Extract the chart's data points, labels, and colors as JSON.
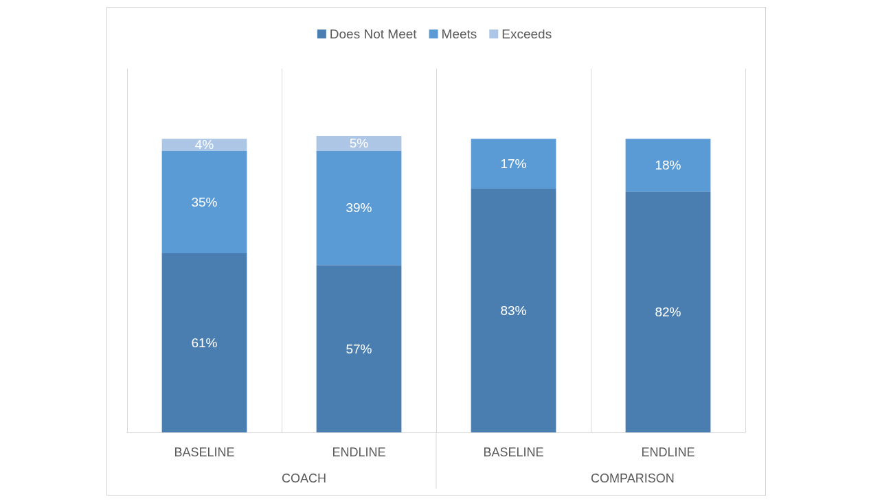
{
  "chart_data": {
    "type": "bar",
    "stacked": true,
    "categories": [
      "BASELINE",
      "ENDLINE",
      "BASELINE",
      "ENDLINE"
    ],
    "series": [
      {
        "name": "Does Not Meet",
        "color": "#4a7eb0",
        "values": [
          61,
          57,
          83,
          82
        ],
        "value_labels": [
          "61%",
          "57%",
          "83%",
          "82%"
        ]
      },
      {
        "name": "Meets",
        "color": "#5b9bd5",
        "values": [
          35,
          39,
          17,
          18
        ],
        "value_labels": [
          "35%",
          "39%",
          "17%",
          "18%"
        ]
      },
      {
        "name": "Exceeds",
        "color": "#adc6e5",
        "values": [
          4,
          5,
          null,
          null
        ],
        "value_labels": [
          "4%",
          "5%",
          null,
          null
        ]
      }
    ],
    "annotations": [
      "COACH",
      "COMPARISON"
    ],
    "legend": "top",
    "grid": "x"
  }
}
